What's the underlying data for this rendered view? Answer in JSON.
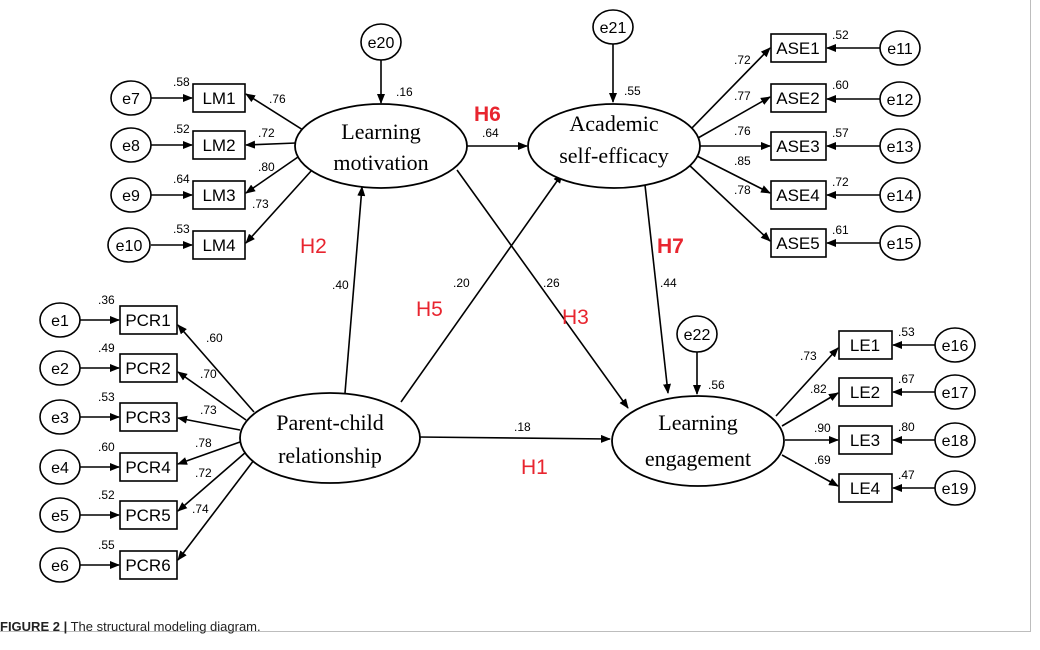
{
  "latent": {
    "lm": [
      "Learning",
      "motivation"
    ],
    "ase": [
      "Academic",
      "self-efficacy"
    ],
    "pcr": [
      "Parent-child",
      "relationship"
    ],
    "le": [
      "Learning",
      "engagement"
    ]
  },
  "indicators": {
    "lm": [
      "LM1",
      "LM2",
      "LM3",
      "LM4"
    ],
    "ase": [
      "ASE1",
      "ASE2",
      "ASE3",
      "ASE4",
      "ASE5"
    ],
    "pcr": [
      "PCR1",
      "PCR2",
      "PCR3",
      "PCR4",
      "PCR5",
      "PCR6"
    ],
    "le": [
      "LE1",
      "LE2",
      "LE3",
      "LE4"
    ]
  },
  "errors": {
    "lm": [
      "e7",
      "e8",
      "e9",
      "e10"
    ],
    "ase": [
      "e11",
      "e12",
      "e13",
      "e14",
      "e15"
    ],
    "pcr": [
      "e1",
      "e2",
      "e3",
      "e4",
      "e5",
      "e6"
    ],
    "le": [
      "e16",
      "e17",
      "e18",
      "e19"
    ],
    "structural": [
      "e20",
      "e21",
      "e22"
    ]
  },
  "loadings": {
    "lm": [
      ".76",
      ".72",
      ".80",
      ".73"
    ],
    "ase": [
      ".72",
      ".77",
      ".76",
      ".85",
      ".78"
    ],
    "pcr": [
      ".60",
      ".70",
      ".73",
      ".78",
      ".72",
      ".74"
    ],
    "le": [
      ".73",
      ".82",
      ".90",
      ".69"
    ]
  },
  "r2": {
    "lm": [
      ".58",
      ".52",
      ".64",
      ".53"
    ],
    "ase": [
      ".52",
      ".60",
      ".57",
      ".72",
      ".61"
    ],
    "pcr": [
      ".36",
      ".49",
      ".53",
      ".60",
      ".52",
      ".55"
    ],
    "le": [
      ".53",
      ".67",
      ".80",
      ".47"
    ],
    "structural": [
      ".16",
      ".55",
      ".56"
    ]
  },
  "paths": {
    "pcr_lm": ".40",
    "pcr_ase": ".20",
    "lm_ase": ".64",
    "lm_le": ".26",
    "ase_le": ".44",
    "pcr_le": ".18"
  },
  "hypotheses": [
    "H1",
    "H2",
    "H3",
    "H5",
    "H6",
    "H7"
  ],
  "colors": {
    "hypothesis": "#e8252f",
    "stroke": "#000000"
  },
  "caption": {
    "label": "FIGURE 2 |",
    "text": " The structural modeling diagram."
  }
}
